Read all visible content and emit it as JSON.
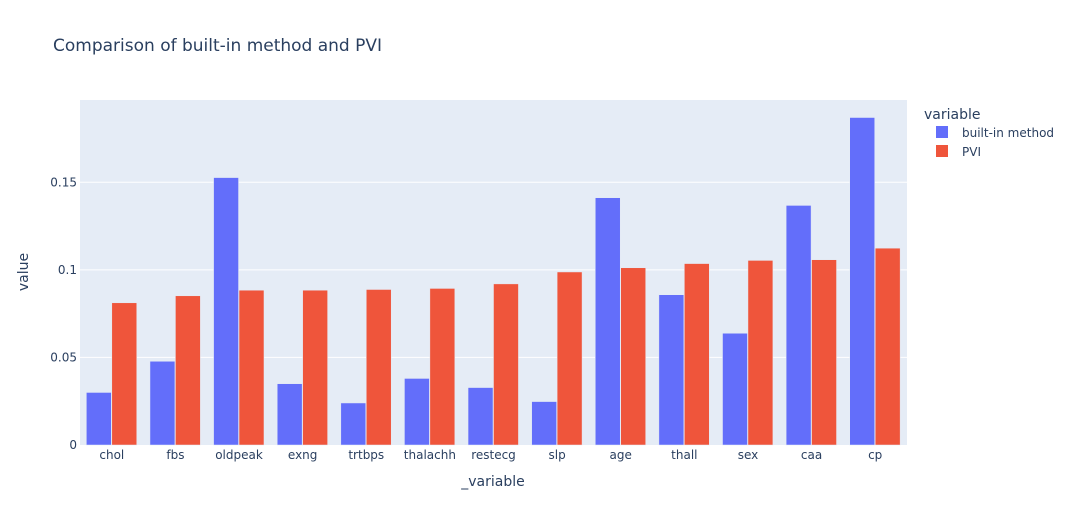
{
  "chart_data": {
    "type": "bar",
    "title": "Comparison of built-in method and PVI",
    "xlabel": "_variable",
    "ylabel": "value",
    "categories": [
      "chol",
      "fbs",
      "oldpeak",
      "exng",
      "trtbps",
      "thalachh",
      "restecg",
      "slp",
      "age",
      "thall",
      "sex",
      "caa",
      "cp"
    ],
    "series": [
      {
        "name": "built-in method",
        "color": "#636efa",
        "values": [
          0.03,
          0.0478,
          0.1527,
          0.035,
          0.024,
          0.038,
          0.0328,
          0.0248,
          0.1412,
          0.0858,
          0.0638,
          0.1368,
          0.187
        ]
      },
      {
        "name": "PVI",
        "color": "#ef553b",
        "values": [
          0.0812,
          0.0852,
          0.0884,
          0.0884,
          0.0888,
          0.0894,
          0.092,
          0.0988,
          0.1012,
          0.1036,
          0.1054,
          0.1058,
          0.1124
        ]
      }
    ],
    "ylim": [
      0,
      0.197
    ],
    "yticks": [
      0,
      0.05,
      0.1,
      0.15
    ],
    "ytick_labels": [
      "0",
      "0.05",
      "0.1",
      "0.15"
    ],
    "legend": {
      "title": "variable",
      "placement": "right"
    },
    "grid": true,
    "plot_bg": "#e5ecf6",
    "text_color": "#2a3f5f"
  }
}
